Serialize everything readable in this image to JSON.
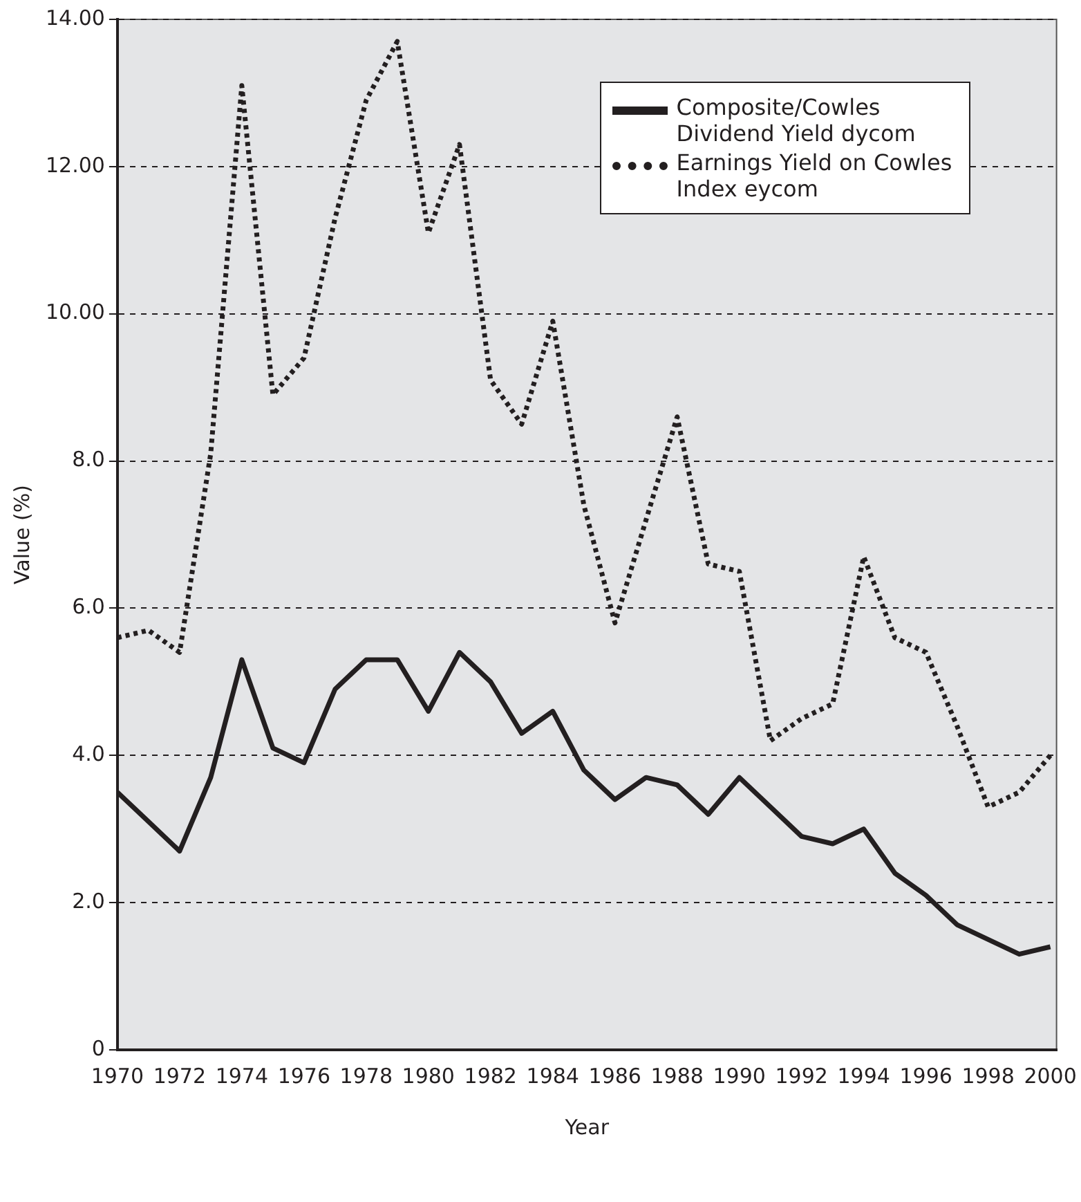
{
  "chart_data": {
    "type": "line",
    "xlabel": "Year",
    "ylabel": "Value (%)",
    "x": [
      1970,
      1971,
      1972,
      1973,
      1974,
      1975,
      1976,
      1977,
      1978,
      1979,
      1980,
      1981,
      1982,
      1983,
      1984,
      1985,
      1986,
      1987,
      1988,
      1989,
      1990,
      1991,
      1992,
      1993,
      1994,
      1995,
      1996,
      1997,
      1998,
      1999,
      2000
    ],
    "series": [
      {
        "name": "Composite/Cowles Dividend Yield dycom",
        "color": "#231f20",
        "line_style": "solid",
        "values": [
          3.5,
          3.1,
          2.7,
          3.7,
          5.3,
          4.1,
          3.9,
          4.9,
          5.3,
          5.3,
          4.6,
          5.4,
          5.0,
          4.3,
          4.6,
          3.8,
          3.4,
          3.7,
          3.6,
          3.2,
          3.7,
          3.3,
          2.9,
          2.8,
          3.0,
          2.4,
          2.1,
          1.7,
          1.5,
          1.3,
          1.4
        ]
      },
      {
        "name": "Earnings Yield on Cowles Index eycom",
        "color": "#231f20",
        "line_style": "dotted",
        "values": [
          5.6,
          5.7,
          5.4,
          8.1,
          13.1,
          8.9,
          9.4,
          11.3,
          12.9,
          13.7,
          11.1,
          12.3,
          9.1,
          8.5,
          9.9,
          7.4,
          5.8,
          7.2,
          8.6,
          6.6,
          6.5,
          4.2,
          4.5,
          4.7,
          6.7,
          5.6,
          5.4,
          4.4,
          3.3,
          3.5,
          4.0
        ]
      }
    ],
    "xlim": [
      1970,
      2000.2
    ],
    "xticks": [
      1970,
      1972,
      1974,
      1976,
      1978,
      1980,
      1982,
      1984,
      1986,
      1988,
      1990,
      1992,
      1994,
      1996,
      1998,
      2000
    ],
    "ylim": [
      0,
      14
    ],
    "yticks": [
      {
        "value": 0,
        "label": "0"
      },
      {
        "value": 2,
        "label": "2.0"
      },
      {
        "value": 4,
        "label": "4.0"
      },
      {
        "value": 6,
        "label": "6.0"
      },
      {
        "value": 8,
        "label": "8.0"
      },
      {
        "value": 10,
        "label": "10.00"
      },
      {
        "value": 12,
        "label": "12.00"
      },
      {
        "value": 14,
        "label": "14.00"
      }
    ],
    "grid": "y",
    "legend": "top right",
    "marker": "none"
  }
}
